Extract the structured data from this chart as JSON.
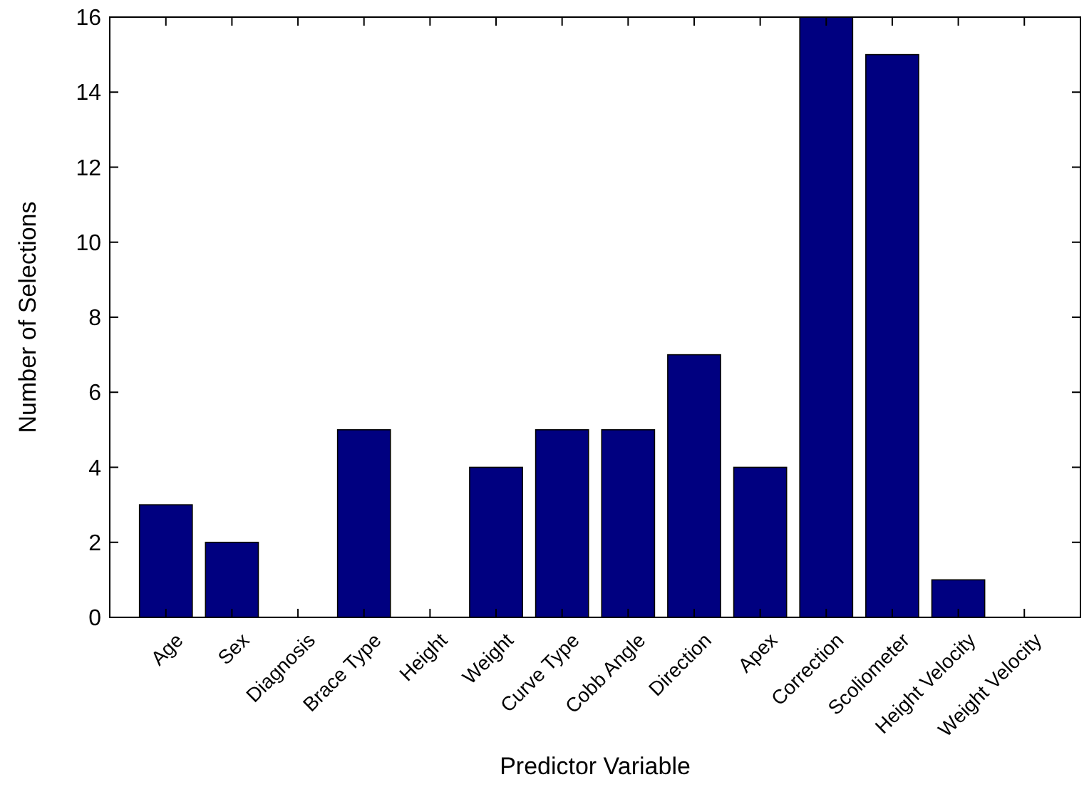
{
  "chart_data": {
    "type": "bar",
    "xlabel": "Predictor Variable",
    "ylabel": "Number of Selections",
    "categories": [
      "Age",
      "Sex",
      "Diagnosis",
      "Brace Type",
      "Height",
      "Weight",
      "Curve Type",
      "Cobb Angle",
      "Direction",
      "Apex",
      "Correction",
      "Scoliometer",
      "Height Velocity",
      "Weight Velocity"
    ],
    "values": [
      3,
      2,
      0,
      5,
      0,
      4,
      5,
      5,
      7,
      4,
      16,
      15,
      1,
      0
    ],
    "color": "#000080",
    "ylim": [
      0,
      16
    ],
    "yticks": [
      0,
      2,
      4,
      6,
      8,
      10,
      12,
      14,
      16
    ]
  }
}
